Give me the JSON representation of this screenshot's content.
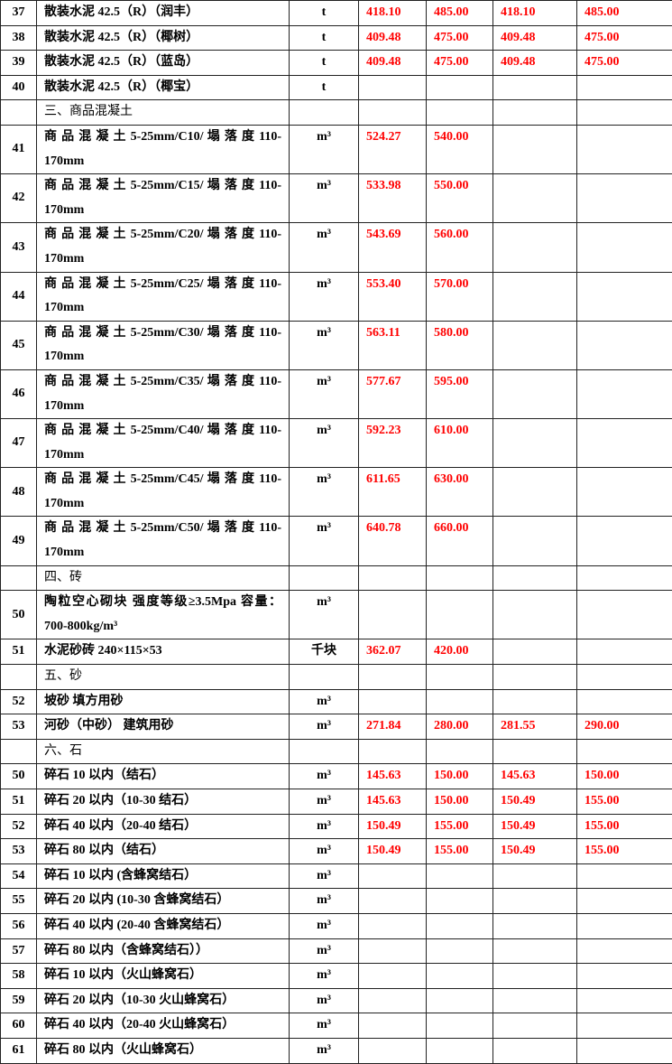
{
  "rows": [
    {
      "no": "37",
      "name": "散装水泥 42.5（R）（润丰）",
      "unit": "t",
      "p": [
        "418.10",
        "485.00",
        "418.10",
        "485.00"
      ]
    },
    {
      "no": "38",
      "name": "散装水泥 42.5（R）（椰树）",
      "unit": "t",
      "p": [
        "409.48",
        "475.00",
        "409.48",
        "475.00"
      ]
    },
    {
      "no": "39",
      "name": "散装水泥 42.5（R）（蓝岛）",
      "unit": "t",
      "p": [
        "409.48",
        "475.00",
        "409.48",
        "475.00"
      ]
    },
    {
      "no": "40",
      "name": "散装水泥 42.5（R）（椰宝）",
      "unit": "t",
      "p": [
        "",
        "",
        "",
        ""
      ]
    },
    {
      "no": "",
      "name": "三、商品混凝土",
      "unit": "",
      "p": [
        "",
        "",
        "",
        ""
      ],
      "section": true
    },
    {
      "no": "41",
      "name": "商 品 混 凝 土  5-25mm/C10/ 塌 落 度 110-170mm",
      "unit": "m³",
      "p": [
        "524.27",
        "540.00",
        "",
        ""
      ],
      "double": true
    },
    {
      "no": "42",
      "name": "商 品 混 凝 土  5-25mm/C15/ 塌 落 度 110-170mm",
      "unit": "m³",
      "p": [
        "533.98",
        "550.00",
        "",
        ""
      ],
      "double": true
    },
    {
      "no": "43",
      "name": "商 品 混 凝 土  5-25mm/C20/ 塌 落 度 110-170mm",
      "unit": "m³",
      "p": [
        "543.69",
        "560.00",
        "",
        ""
      ],
      "double": true
    },
    {
      "no": "44",
      "name": "商 品 混 凝 土  5-25mm/C25/ 塌 落 度 110-170mm",
      "unit": "m³",
      "p": [
        "553.40",
        "570.00",
        "",
        ""
      ],
      "double": true
    },
    {
      "no": "45",
      "name": "商 品 混 凝 土  5-25mm/C30/ 塌 落 度 110-170mm",
      "unit": "m³",
      "p": [
        "563.11",
        "580.00",
        "",
        ""
      ],
      "double": true
    },
    {
      "no": "46",
      "name": "商 品 混 凝 土  5-25mm/C35/ 塌 落 度 110-170mm",
      "unit": "m³",
      "p": [
        "577.67",
        "595.00",
        "",
        ""
      ],
      "double": true
    },
    {
      "no": "47",
      "name": "商 品 混 凝 土  5-25mm/C40/ 塌 落 度 110-170mm",
      "unit": "m³",
      "p": [
        "592.23",
        "610.00",
        "",
        ""
      ],
      "double": true
    },
    {
      "no": "48",
      "name": "商 品 混 凝 土  5-25mm/C45/ 塌 落 度 110-170mm",
      "unit": "m³",
      "p": [
        "611.65",
        "630.00",
        "",
        ""
      ],
      "double": true
    },
    {
      "no": "49",
      "name": "商 品 混 凝 土  5-25mm/C50/ 塌 落 度 110-170mm",
      "unit": "m³",
      "p": [
        "640.78",
        "660.00",
        "",
        ""
      ],
      "double": true
    },
    {
      "no": "",
      "name": "四、砖",
      "unit": "",
      "p": [
        "",
        "",
        "",
        ""
      ],
      "section": true
    },
    {
      "no": "50",
      "name": "陶粒空心砌块 强度等级≥3.5Mpa 容量：700-800kg/m³",
      "unit": "m³",
      "p": [
        "",
        "",
        "",
        ""
      ],
      "double": true
    },
    {
      "no": "51",
      "name": "水泥砂砖  240×115×53",
      "unit": "千块",
      "p": [
        "362.07",
        "420.00",
        "",
        ""
      ]
    },
    {
      "no": "",
      "name": "五、砂",
      "unit": "",
      "p": [
        "",
        "",
        "",
        ""
      ],
      "section": true
    },
    {
      "no": "52",
      "name": "坡砂  填方用砂",
      "unit": "m³",
      "p": [
        "",
        "",
        "",
        ""
      ]
    },
    {
      "no": "53",
      "name": "河砂（中砂）  建筑用砂",
      "unit": "m³",
      "p": [
        "271.84",
        "280.00",
        "281.55",
        "290.00"
      ]
    },
    {
      "no": "",
      "name": "六、石",
      "unit": "",
      "p": [
        "",
        "",
        "",
        ""
      ],
      "section": true
    },
    {
      "no": "50",
      "name": "碎石 10 以内（结石）",
      "unit": "m³",
      "p": [
        "145.63",
        "150.00",
        "145.63",
        "150.00"
      ]
    },
    {
      "no": "51",
      "name": "碎石 20 以内（10-30 结石）",
      "unit": "m³",
      "p": [
        "145.63",
        "150.00",
        "150.49",
        "155.00"
      ]
    },
    {
      "no": "52",
      "name": "碎石 40 以内（20-40 结石）",
      "unit": "m³",
      "p": [
        "150.49",
        "155.00",
        "150.49",
        "155.00"
      ]
    },
    {
      "no": "53",
      "name": "碎石 80 以内（结石）",
      "unit": "m³",
      "p": [
        "150.49",
        "155.00",
        "150.49",
        "155.00"
      ]
    },
    {
      "no": "54",
      "name": "碎石 10 以内 (含蜂窝结石）",
      "unit": "m³",
      "p": [
        "",
        "",
        "",
        ""
      ]
    },
    {
      "no": "55",
      "name": "碎石 20 以内 (10-30 含蜂窝结石）",
      "unit": "m³",
      "p": [
        "",
        "",
        "",
        ""
      ]
    },
    {
      "no": "56",
      "name": "碎石 40 以内 (20-40 含蜂窝结石）",
      "unit": "m³",
      "p": [
        "",
        "",
        "",
        ""
      ]
    },
    {
      "no": "57",
      "name": "碎石 80 以内（含蜂窝结石））",
      "unit": "m³",
      "p": [
        "",
        "",
        "",
        ""
      ]
    },
    {
      "no": "58",
      "name": "碎石 10 以内（火山蜂窝石）",
      "unit": "m³",
      "p": [
        "",
        "",
        "",
        ""
      ]
    },
    {
      "no": "59",
      "name": "碎石 20 以内（10-30 火山蜂窝石）",
      "unit": "m³",
      "p": [
        "",
        "",
        "",
        ""
      ]
    },
    {
      "no": "60",
      "name": "碎石 40 以内（20-40 火山蜂窝石）",
      "unit": "m³",
      "p": [
        "",
        "",
        "",
        ""
      ]
    },
    {
      "no": "61",
      "name": "碎石 80 以内（火山蜂窝石）",
      "unit": "m³",
      "p": [
        "",
        "",
        "",
        ""
      ]
    }
  ],
  "colors": {
    "price": "#ff0000",
    "text": "#000000"
  }
}
